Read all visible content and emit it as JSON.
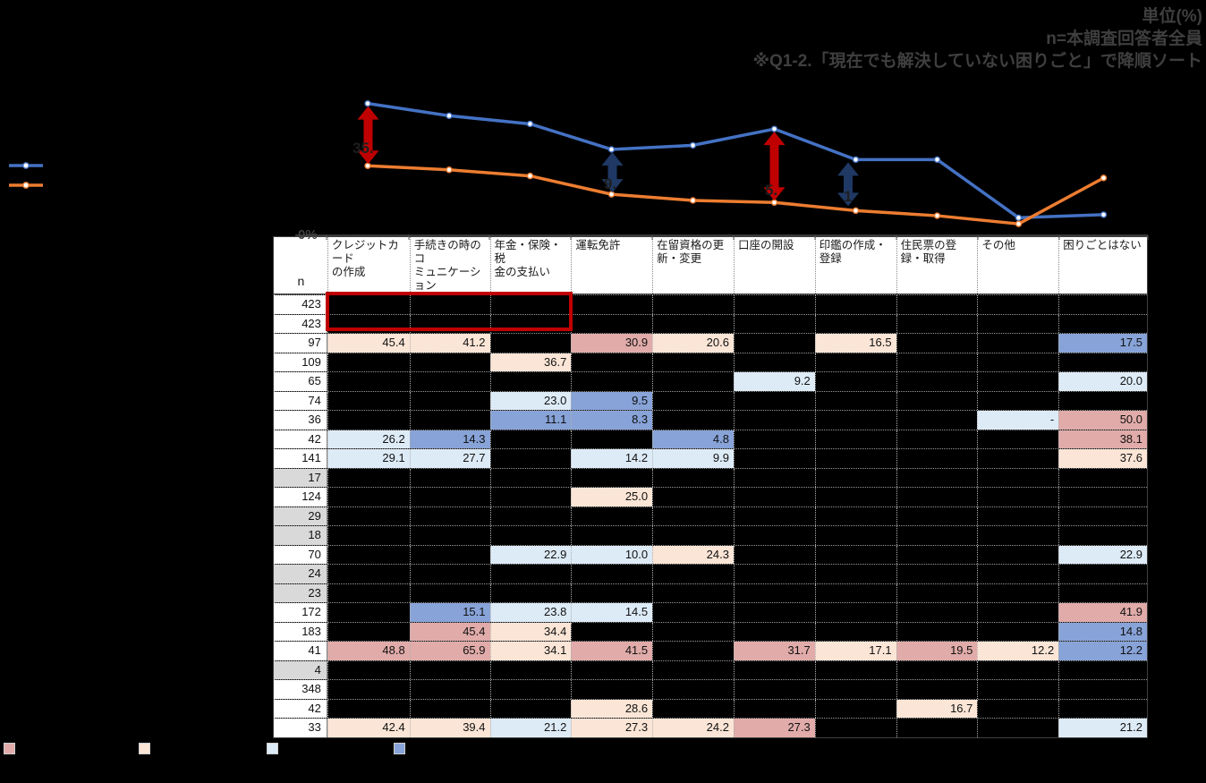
{
  "note_block": {
    "line1": "単位(%)",
    "line2": "n=本調査回答者全員",
    "line3": "※Q1-2.「現在でも解決していない困りごと」で降順ソート"
  },
  "chart_data": {
    "type": "line",
    "categories": [
      "クレジットカードの作成",
      "手続きの時のコミュニケーション",
      "年金・保険・税金の支払い",
      "運転免許",
      "在留資格の更新・変更",
      "口座の開設",
      "印鑑の作成・登録",
      "住民票の登録・取得",
      "その他",
      "困りごとはない"
    ],
    "series": [
      {
        "name": "",
        "color": "#4472C4",
        "values": [
          65.5,
          59.5,
          55.5,
          43,
          45,
          53,
          38,
          38,
          9.5,
          11
        ]
      },
      {
        "name": "",
        "color": "#ED7D31",
        "values": [
          35,
          33,
          30,
          21,
          18,
          17,
          13,
          10.5,
          6.5,
          29
        ]
      }
    ],
    "ylabel_zero": "0%",
    "axis_color": "#595959",
    "ylim": [
      0,
      70
    ],
    "grid": false,
    "legend_position": "left",
    "arrows": [
      {
        "color": "#C00000",
        "category_index": 0,
        "label": "35."
      },
      {
        "color": "#1F3864",
        "category_index": 3,
        "label": "9."
      },
      {
        "color": "#C00000",
        "category_index": 5,
        "label": "5."
      },
      {
        "color": "#1F3864",
        "category_index": 6,
        "label": "1"
      }
    ]
  },
  "table": {
    "n_header": "n",
    "columns": [
      "クレジットカード\nの作成",
      "手続きの時のコ\nミュニケーション",
      "年金・保険・税\n金の支払い",
      "運転免許",
      "在留資格の更\n新・変更",
      "口座の開設",
      "印鑑の作成・\n登録",
      "住民票の登\n録・取得",
      "その他",
      "困りごとはない"
    ],
    "palette": {
      "rose": "#E0ABA9",
      "peach": "#FBE5D6",
      "blue1": "#DDEBF7",
      "blue2": "#87A3D8"
    },
    "rows": [
      {
        "n": "423",
        "gray": false,
        "cells": [
          null,
          null,
          null,
          null,
          null,
          null,
          null,
          null,
          null,
          null
        ]
      },
      {
        "n": "423",
        "gray": false,
        "cells": [
          null,
          null,
          null,
          null,
          null,
          null,
          null,
          null,
          null,
          null
        ]
      },
      {
        "n": "97",
        "gray": false,
        "cells": [
          {
            "v": "45.4",
            "c": "peach"
          },
          {
            "v": "41.2",
            "c": "peach"
          },
          null,
          {
            "v": "30.9",
            "c": "rose"
          },
          {
            "v": "20.6",
            "c": "peach"
          },
          null,
          {
            "v": "16.5",
            "c": "peach"
          },
          null,
          null,
          {
            "v": "17.5",
            "c": "blue2"
          }
        ]
      },
      {
        "n": "109",
        "gray": false,
        "cells": [
          null,
          null,
          {
            "v": "36.7",
            "c": "peach"
          },
          null,
          null,
          null,
          null,
          null,
          null,
          null
        ]
      },
      {
        "n": "65",
        "gray": false,
        "cells": [
          null,
          null,
          null,
          null,
          null,
          {
            "v": "9.2",
            "c": "blue1"
          },
          null,
          null,
          null,
          {
            "v": "20.0",
            "c": "blue1"
          }
        ]
      },
      {
        "n": "74",
        "gray": false,
        "cells": [
          null,
          null,
          {
            "v": "23.0",
            "c": "blue1"
          },
          {
            "v": "9.5",
            "c": "blue2"
          },
          null,
          null,
          null,
          null,
          null,
          null
        ]
      },
      {
        "n": "36",
        "gray": false,
        "cells": [
          null,
          null,
          {
            "v": "11.1",
            "c": "blue2"
          },
          {
            "v": "8.3",
            "c": "blue2"
          },
          null,
          null,
          null,
          null,
          {
            "v": "-",
            "c": "blue1"
          },
          {
            "v": "50.0",
            "c": "rose"
          }
        ]
      },
      {
        "n": "42",
        "gray": false,
        "cells": [
          {
            "v": "26.2",
            "c": "blue1"
          },
          {
            "v": "14.3",
            "c": "blue2"
          },
          null,
          null,
          {
            "v": "4.8",
            "c": "blue2"
          },
          null,
          null,
          null,
          null,
          {
            "v": "38.1",
            "c": "rose"
          }
        ]
      },
      {
        "n": "141",
        "gray": false,
        "cells": [
          {
            "v": "29.1",
            "c": "blue1"
          },
          {
            "v": "27.7",
            "c": "blue1"
          },
          null,
          {
            "v": "14.2",
            "c": "blue1"
          },
          {
            "v": "9.9",
            "c": "blue1"
          },
          null,
          null,
          null,
          null,
          {
            "v": "37.6",
            "c": "peach"
          }
        ]
      },
      {
        "n": "17",
        "gray": true,
        "cells": [
          null,
          null,
          null,
          null,
          null,
          null,
          null,
          null,
          null,
          null
        ]
      },
      {
        "n": "124",
        "gray": false,
        "cells": [
          null,
          null,
          null,
          {
            "v": "25.0",
            "c": "peach"
          },
          null,
          null,
          null,
          null,
          null,
          null
        ]
      },
      {
        "n": "29",
        "gray": true,
        "cells": [
          null,
          null,
          null,
          null,
          null,
          null,
          null,
          null,
          null,
          null
        ]
      },
      {
        "n": "18",
        "gray": true,
        "cells": [
          null,
          null,
          null,
          null,
          null,
          null,
          null,
          null,
          null,
          null
        ]
      },
      {
        "n": "70",
        "gray": false,
        "cells": [
          null,
          null,
          {
            "v": "22.9",
            "c": "blue1"
          },
          {
            "v": "10.0",
            "c": "blue1"
          },
          {
            "v": "24.3",
            "c": "peach"
          },
          null,
          null,
          null,
          null,
          {
            "v": "22.9",
            "c": "blue1"
          }
        ]
      },
      {
        "n": "24",
        "gray": true,
        "cells": [
          null,
          null,
          null,
          null,
          null,
          null,
          null,
          null,
          null,
          null
        ]
      },
      {
        "n": "23",
        "gray": true,
        "cells": [
          null,
          null,
          null,
          null,
          null,
          null,
          null,
          null,
          null,
          null
        ]
      },
      {
        "n": "172",
        "gray": false,
        "cells": [
          null,
          {
            "v": "15.1",
            "c": "blue2"
          },
          {
            "v": "23.8",
            "c": "blue1"
          },
          {
            "v": "14.5",
            "c": "blue1"
          },
          null,
          null,
          null,
          null,
          null,
          {
            "v": "41.9",
            "c": "rose"
          }
        ]
      },
      {
        "n": "183",
        "gray": false,
        "cells": [
          null,
          {
            "v": "45.4",
            "c": "rose"
          },
          {
            "v": "34.4",
            "c": "peach"
          },
          null,
          null,
          null,
          null,
          null,
          null,
          {
            "v": "14.8",
            "c": "blue2"
          }
        ]
      },
      {
        "n": "41",
        "gray": false,
        "cells": [
          {
            "v": "48.8",
            "c": "rose"
          },
          {
            "v": "65.9",
            "c": "rose"
          },
          {
            "v": "34.1",
            "c": "peach"
          },
          {
            "v": "41.5",
            "c": "rose"
          },
          null,
          {
            "v": "31.7",
            "c": "rose"
          },
          {
            "v": "17.1",
            "c": "peach"
          },
          {
            "v": "19.5",
            "c": "rose"
          },
          {
            "v": "12.2",
            "c": "peach"
          },
          {
            "v": "12.2",
            "c": "blue2"
          }
        ]
      },
      {
        "n": "4",
        "gray": true,
        "cells": [
          null,
          null,
          null,
          null,
          null,
          null,
          null,
          null,
          null,
          null
        ]
      },
      {
        "n": "348",
        "gray": false,
        "cells": [
          null,
          null,
          null,
          null,
          null,
          null,
          null,
          null,
          null,
          null
        ]
      },
      {
        "n": "42",
        "gray": false,
        "cells": [
          null,
          null,
          null,
          {
            "v": "28.6",
            "c": "peach"
          },
          null,
          null,
          null,
          {
            "v": "16.7",
            "c": "peach"
          },
          null,
          null
        ]
      },
      {
        "n": "33",
        "gray": false,
        "cells": [
          {
            "v": "42.4",
            "c": "peach"
          },
          {
            "v": "39.4",
            "c": "peach"
          },
          {
            "v": "21.2",
            "c": "blue1"
          },
          {
            "v": "27.3",
            "c": "peach"
          },
          {
            "v": "24.2",
            "c": "peach"
          },
          {
            "v": "27.3",
            "c": "rose"
          },
          null,
          null,
          null,
          {
            "v": "21.2",
            "c": "blue1"
          }
        ]
      }
    ]
  },
  "color_legend": {
    "swatch_colors": [
      "#E0ABA9",
      "#FBE5D6",
      "#DDEBF7",
      "#87A3D8"
    ]
  }
}
